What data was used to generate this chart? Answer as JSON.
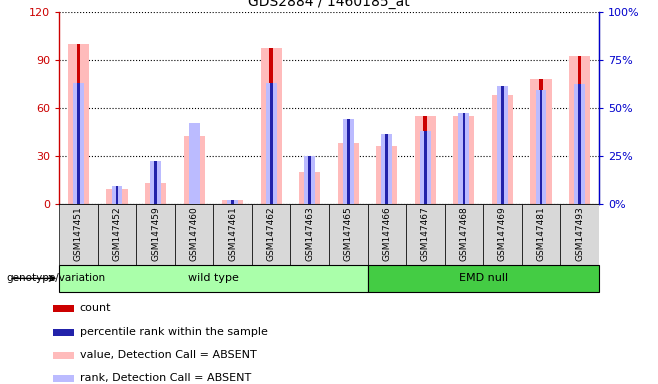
{
  "title": "GDS2884 / 1460185_at",
  "samples": [
    "GSM147451",
    "GSM147452",
    "GSM147459",
    "GSM147460",
    "GSM147461",
    "GSM147462",
    "GSM147463",
    "GSM147465",
    "GSM147466",
    "GSM147467",
    "GSM147468",
    "GSM147469",
    "GSM147481",
    "GSM147493"
  ],
  "count_values": [
    100,
    0,
    13,
    42,
    0,
    97,
    20,
    38,
    0,
    55,
    55,
    68,
    78,
    92
  ],
  "rank_values": [
    63,
    9,
    22,
    0,
    2,
    63,
    25,
    44,
    36,
    38,
    47,
    61,
    59,
    62
  ],
  "absent_value_bars": [
    100,
    9,
    13,
    42,
    2,
    97,
    20,
    38,
    36,
    55,
    55,
    68,
    78,
    92
  ],
  "absent_rank_bars": [
    63,
    9,
    22,
    42,
    2,
    63,
    25,
    44,
    36,
    38,
    47,
    61,
    59,
    62
  ],
  "wild_type_count": 8,
  "emd_null_count": 6,
  "ylim_left": [
    0,
    120
  ],
  "ylim_right": [
    0,
    100
  ],
  "yticks_left": [
    0,
    30,
    60,
    90,
    120
  ],
  "yticks_right": [
    0,
    25,
    50,
    75,
    100
  ],
  "ytick_labels_left": [
    "0",
    "30",
    "60",
    "90",
    "120"
  ],
  "ytick_labels_right": [
    "0%",
    "25%",
    "50%",
    "75%",
    "100%"
  ],
  "color_count": "#cc0000",
  "color_rank": "#2222aa",
  "color_absent_value": "#ffbbbb",
  "color_absent_rank": "#bbbbff",
  "color_wt_bg": "#aaffaa",
  "color_emd_bg": "#44cc44",
  "color_axis_left": "#cc0000",
  "color_axis_right": "#0000cc",
  "legend_items": [
    {
      "label": "count",
      "color": "#cc0000"
    },
    {
      "label": "percentile rank within the sample",
      "color": "#2222aa"
    },
    {
      "label": "value, Detection Call = ABSENT",
      "color": "#ffbbbb"
    },
    {
      "label": "rank, Detection Call = ABSENT",
      "color": "#bbbbff"
    }
  ]
}
